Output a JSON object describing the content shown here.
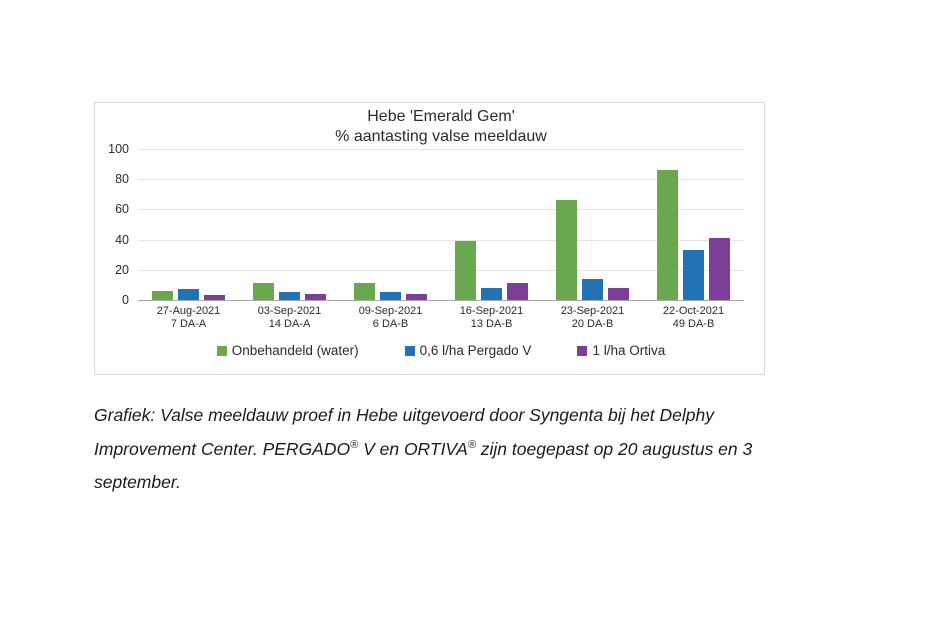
{
  "chart_data": {
    "type": "bar",
    "title_lines": [
      "Hebe 'Emerald Gem'",
      "% aantasting valse meeldauw"
    ],
    "categories": [
      [
        "27-Aug-2021",
        "7 DA-A"
      ],
      [
        "03-Sep-2021",
        "14 DA-A"
      ],
      [
        "09-Sep-2021",
        "6 DA-B"
      ],
      [
        "16-Sep-2021",
        "13 DA-B"
      ],
      [
        "23-Sep-2021",
        "20 DA-B"
      ],
      [
        "22-Oct-2021",
        "49 DA-B"
      ]
    ],
    "series": [
      {
        "name": "Onbehandeld (water)",
        "color": "#6aa84f",
        "values": [
          6,
          11,
          11,
          39,
          66,
          86
        ]
      },
      {
        "name": "0,6 l/ha Pergado V",
        "color": "#2273b6",
        "values": [
          7,
          5,
          5,
          8,
          14,
          33
        ]
      },
      {
        "name": "1 l/ha Ortiva",
        "color": "#7e3e97",
        "values": [
          3,
          4,
          4,
          11,
          8,
          41
        ]
      }
    ],
    "ylim": [
      0,
      100
    ],
    "yticks": [
      0,
      20,
      40,
      60,
      80,
      100
    ],
    "grid": true,
    "legend_position": "bottom"
  },
  "caption": {
    "lines": [
      [
        {
          "text": "Grafiek: Valse meeldauw proef in Hebe uitgevoerd door Syngenta bij het Delphy"
        }
      ],
      [
        {
          "text": "Improvement Center. PERGADO"
        },
        {
          "text": "®",
          "sup": true
        },
        {
          "text": " V en ORTIVA"
        },
        {
          "text": "®",
          "sup": true
        },
        {
          "text": " zijn toegepast op 20 augustus en 3"
        }
      ],
      [
        {
          "text": "september."
        }
      ]
    ]
  }
}
